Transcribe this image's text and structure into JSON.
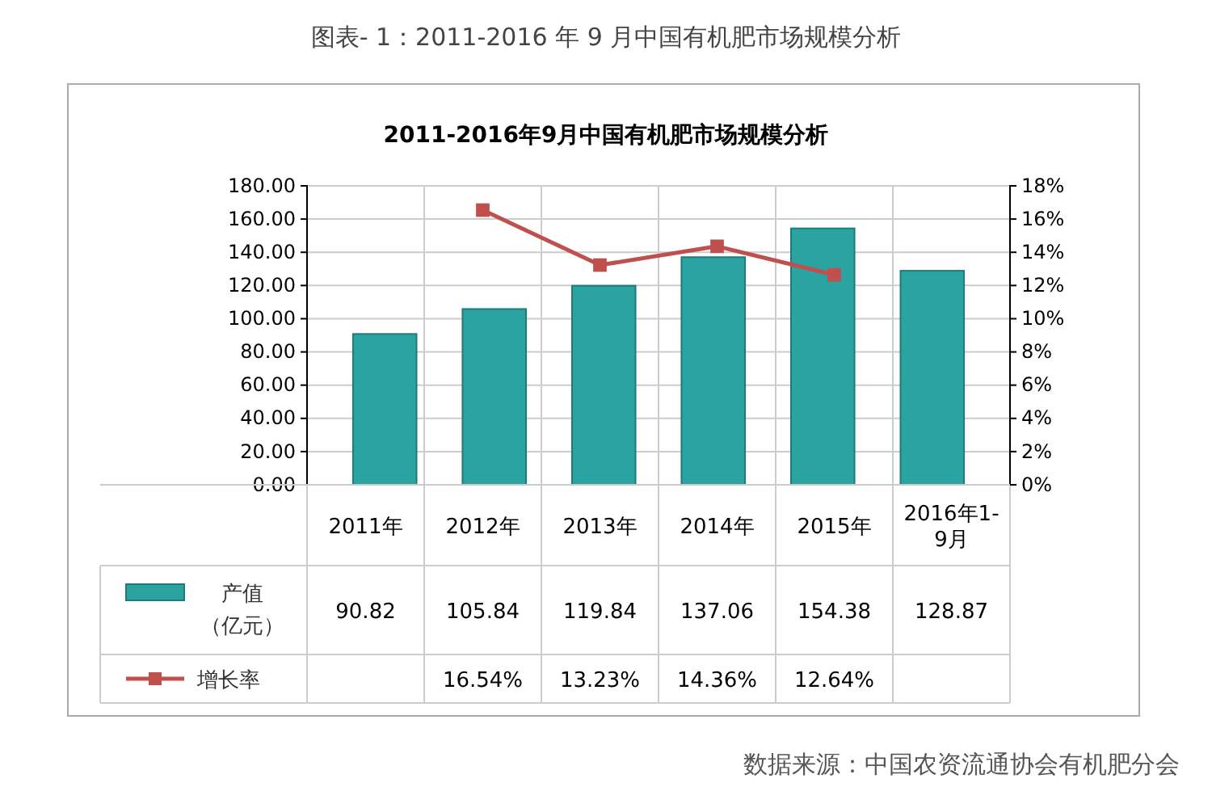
{
  "chart_data": {
    "type": "bar",
    "title": "图表- 1：2011-2016 年 9 月中国有机肥市场规模分析",
    "subtitle": "2011-2016年9月中国有机肥市场规模分析",
    "annotations": [
      "数据来源：中国农资流通协会有机肥分会"
    ],
    "categories": [
      "2011年",
      "2012年",
      "2013年",
      "2014年",
      "2015年",
      "2016年1-9月"
    ],
    "series": [
      {
        "name": "产值（亿元）",
        "color": "#2ba3a0",
        "values": [
          90.82,
          105.84,
          119.84,
          137.06,
          154.38,
          128.87
        ],
        "value_labels": [
          "90.82",
          "105.84",
          "119.84",
          "137.06",
          "154.38",
          "128.87"
        ]
      },
      {
        "name": "增长率",
        "type": "line",
        "axis": "y2",
        "color": "#c0504d",
        "marker": "square",
        "values": [
          null,
          16.54,
          13.23,
          14.36,
          12.64,
          null
        ],
        "value_labels": [
          null,
          "16.54%",
          "13.23%",
          "14.36%",
          "12.64%",
          null
        ]
      }
    ],
    "ylim": [
      0,
      180
    ],
    "yticks": [
      {
        "value": 0,
        "label": "0.00"
      },
      {
        "value": 20,
        "label": "20.00"
      },
      {
        "value": 40,
        "label": "40.00"
      },
      {
        "value": 60,
        "label": "60.00"
      },
      {
        "value": 80,
        "label": "80.00"
      },
      {
        "value": 100,
        "label": "100.00"
      },
      {
        "value": 120,
        "label": "120.00"
      },
      {
        "value": 140,
        "label": "140.00"
      },
      {
        "value": 160,
        "label": "160.00"
      },
      {
        "value": 180,
        "label": "180.00"
      }
    ],
    "y2lim": [
      0,
      18
    ],
    "y2ticks": [
      {
        "value": 0,
        "label": "0%"
      },
      {
        "value": 2,
        "label": "2%"
      },
      {
        "value": 4,
        "label": "4%"
      },
      {
        "value": 6,
        "label": "6%"
      },
      {
        "value": 8,
        "label": "8%"
      },
      {
        "value": 10,
        "label": "10%"
      },
      {
        "value": 12,
        "label": "12%"
      },
      {
        "value": 14,
        "label": "14%"
      },
      {
        "value": 16,
        "label": "16%"
      },
      {
        "value": 18,
        "label": "18%"
      }
    ],
    "grid": "y",
    "legend": "bottom"
  }
}
